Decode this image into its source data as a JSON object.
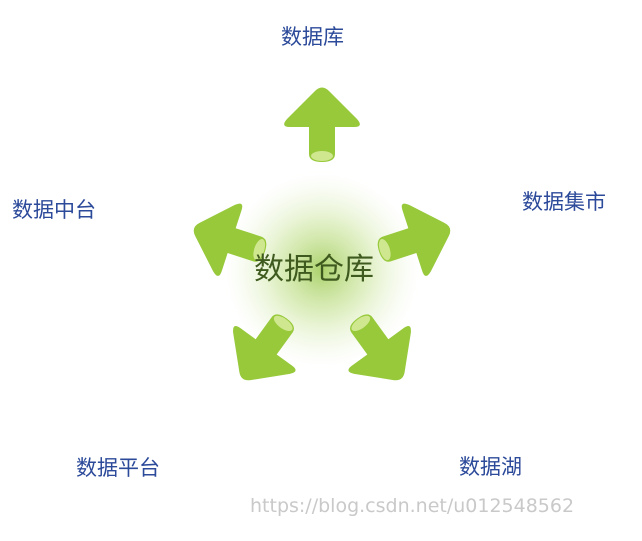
{
  "center": {
    "label": "数据仓库"
  },
  "nodes": [
    {
      "id": "top",
      "label": "数据库"
    },
    {
      "id": "right",
      "label": "数据集市"
    },
    {
      "id": "bottom-right",
      "label": "数据湖"
    },
    {
      "id": "bottom-left",
      "label": "数据平台"
    },
    {
      "id": "left",
      "label": "数据中台"
    }
  ],
  "watermark": "https://blog.csdn.net/u012548562",
  "colors": {
    "arrow": "#97c93b",
    "arrow_highlight": "#d8ec9e",
    "label": "#2c4a9a",
    "center_text": "#3f5a1e",
    "glow": "#8fc23a",
    "watermark": "#c9c9c9"
  }
}
